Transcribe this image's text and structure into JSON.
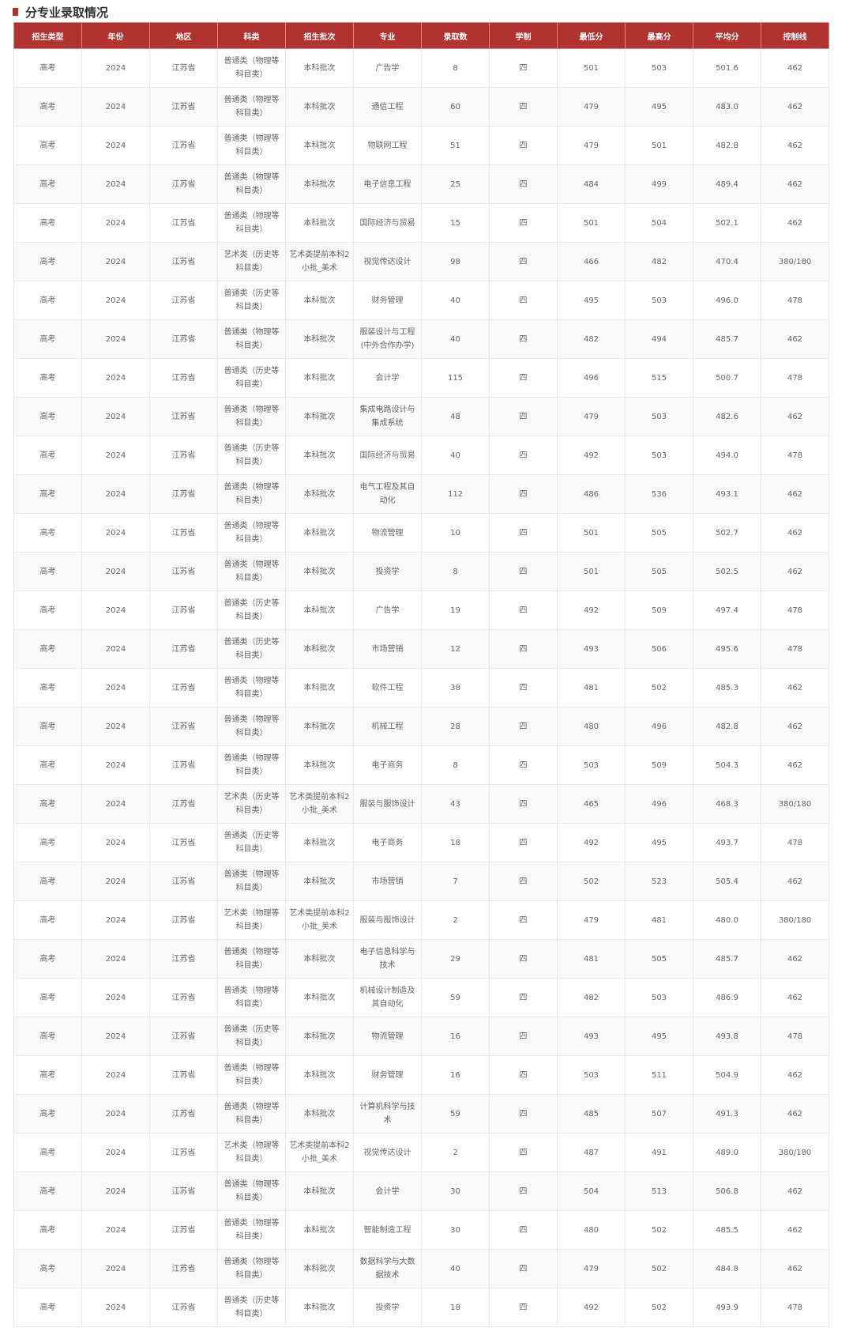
{
  "section_title": "分专业录取情况",
  "accent_color": "#b0332f",
  "headers": [
    "招生类型",
    "年份",
    "地区",
    "科类",
    "招生批次",
    "专业",
    "录取数",
    "学制",
    "最低分",
    "最高分",
    "平均分",
    "控制线"
  ],
  "rows": [
    [
      "高考",
      "2024",
      "江苏省",
      "普通类（物理等科目类）",
      "本科批次",
      "广告学",
      "8",
      "四",
      "501",
      "503",
      "501.6",
      "462"
    ],
    [
      "高考",
      "2024",
      "江苏省",
      "普通类（物理等科目类）",
      "本科批次",
      "通信工程",
      "60",
      "四",
      "479",
      "495",
      "483.0",
      "462"
    ],
    [
      "高考",
      "2024",
      "江苏省",
      "普通类（物理等科目类）",
      "本科批次",
      "物联网工程",
      "51",
      "四",
      "479",
      "501",
      "482.8",
      "462"
    ],
    [
      "高考",
      "2024",
      "江苏省",
      "普通类（物理等科目类）",
      "本科批次",
      "电子信息工程",
      "25",
      "四",
      "484",
      "499",
      "489.4",
      "462"
    ],
    [
      "高考",
      "2024",
      "江苏省",
      "普通类（物理等科目类）",
      "本科批次",
      "国际经济与贸易",
      "15",
      "四",
      "501",
      "504",
      "502.1",
      "462"
    ],
    [
      "高考",
      "2024",
      "江苏省",
      "艺术类（历史等科目类）",
      "艺术类提前本科2小批_美术",
      "视觉传达设计",
      "98",
      "四",
      "466",
      "482",
      "470.4",
      "380/180"
    ],
    [
      "高考",
      "2024",
      "江苏省",
      "普通类（历史等科目类）",
      "本科批次",
      "财务管理",
      "40",
      "四",
      "495",
      "503",
      "496.0",
      "478"
    ],
    [
      "高考",
      "2024",
      "江苏省",
      "普通类（物理等科目类）",
      "本科批次",
      "服装设计与工程(中外合作办学)",
      "40",
      "四",
      "482",
      "494",
      "485.7",
      "462"
    ],
    [
      "高考",
      "2024",
      "江苏省",
      "普通类（历史等科目类）",
      "本科批次",
      "会计学",
      "115",
      "四",
      "496",
      "515",
      "500.7",
      "478"
    ],
    [
      "高考",
      "2024",
      "江苏省",
      "普通类（物理等科目类）",
      "本科批次",
      "集成电路设计与集成系统",
      "48",
      "四",
      "479",
      "503",
      "482.6",
      "462"
    ],
    [
      "高考",
      "2024",
      "江苏省",
      "普通类（历史等科目类）",
      "本科批次",
      "国际经济与贸易",
      "40",
      "四",
      "492",
      "503",
      "494.0",
      "478"
    ],
    [
      "高考",
      "2024",
      "江苏省",
      "普通类（物理等科目类）",
      "本科批次",
      "电气工程及其自动化",
      "112",
      "四",
      "486",
      "536",
      "493.1",
      "462"
    ],
    [
      "高考",
      "2024",
      "江苏省",
      "普通类（物理等科目类）",
      "本科批次",
      "物流管理",
      "10",
      "四",
      "501",
      "505",
      "502.7",
      "462"
    ],
    [
      "高考",
      "2024",
      "江苏省",
      "普通类（物理等科目类）",
      "本科批次",
      "投资学",
      "8",
      "四",
      "501",
      "505",
      "502.5",
      "462"
    ],
    [
      "高考",
      "2024",
      "江苏省",
      "普通类（历史等科目类）",
      "本科批次",
      "广告学",
      "19",
      "四",
      "492",
      "509",
      "497.4",
      "478"
    ],
    [
      "高考",
      "2024",
      "江苏省",
      "普通类（历史等科目类）",
      "本科批次",
      "市场营销",
      "12",
      "四",
      "493",
      "506",
      "495.6",
      "478"
    ],
    [
      "高考",
      "2024",
      "江苏省",
      "普通类（物理等科目类）",
      "本科批次",
      "软件工程",
      "38",
      "四",
      "481",
      "502",
      "485.3",
      "462"
    ],
    [
      "高考",
      "2024",
      "江苏省",
      "普通类（物理等科目类）",
      "本科批次",
      "机械工程",
      "28",
      "四",
      "480",
      "496",
      "482.8",
      "462"
    ],
    [
      "高考",
      "2024",
      "江苏省",
      "普通类（物理等科目类）",
      "本科批次",
      "电子商务",
      "8",
      "四",
      "503",
      "509",
      "504.3",
      "462"
    ],
    [
      "高考",
      "2024",
      "江苏省",
      "艺术类（历史等科目类）",
      "艺术类提前本科2小批_美术",
      "服装与服饰设计",
      "43",
      "四",
      "465",
      "496",
      "468.3",
      "380/180"
    ],
    [
      "高考",
      "2024",
      "江苏省",
      "普通类（历史等科目类）",
      "本科批次",
      "电子商务",
      "18",
      "四",
      "492",
      "495",
      "493.7",
      "478"
    ],
    [
      "高考",
      "2024",
      "江苏省",
      "普通类（物理等科目类）",
      "本科批次",
      "市场营销",
      "7",
      "四",
      "502",
      "523",
      "505.4",
      "462"
    ],
    [
      "高考",
      "2024",
      "江苏省",
      "艺术类（物理等科目类）",
      "艺术类提前本科2小批_美术",
      "服装与服饰设计",
      "2",
      "四",
      "479",
      "481",
      "480.0",
      "380/180"
    ],
    [
      "高考",
      "2024",
      "江苏省",
      "普通类（物理等科目类）",
      "本科批次",
      "电子信息科学与技术",
      "29",
      "四",
      "481",
      "505",
      "485.7",
      "462"
    ],
    [
      "高考",
      "2024",
      "江苏省",
      "普通类（物理等科目类）",
      "本科批次",
      "机械设计制造及其自动化",
      "59",
      "四",
      "482",
      "503",
      "486.9",
      "462"
    ],
    [
      "高考",
      "2024",
      "江苏省",
      "普通类（历史等科目类）",
      "本科批次",
      "物流管理",
      "16",
      "四",
      "493",
      "495",
      "493.8",
      "478"
    ],
    [
      "高考",
      "2024",
      "江苏省",
      "普通类（物理等科目类）",
      "本科批次",
      "财务管理",
      "16",
      "四",
      "503",
      "511",
      "504.9",
      "462"
    ],
    [
      "高考",
      "2024",
      "江苏省",
      "普通类（物理等科目类）",
      "本科批次",
      "计算机科学与技术",
      "59",
      "四",
      "485",
      "507",
      "491.3",
      "462"
    ],
    [
      "高考",
      "2024",
      "江苏省",
      "艺术类（物理等科目类）",
      "艺术类提前本科2小批_美术",
      "视觉传达设计",
      "2",
      "四",
      "487",
      "491",
      "489.0",
      "380/180"
    ],
    [
      "高考",
      "2024",
      "江苏省",
      "普通类（物理等科目类）",
      "本科批次",
      "会计学",
      "30",
      "四",
      "504",
      "513",
      "506.8",
      "462"
    ],
    [
      "高考",
      "2024",
      "江苏省",
      "普通类（物理等科目类）",
      "本科批次",
      "智能制造工程",
      "30",
      "四",
      "480",
      "502",
      "485.5",
      "462"
    ],
    [
      "高考",
      "2024",
      "江苏省",
      "普通类（物理等科目类）",
      "本科批次",
      "数据科学与大数据技术",
      "40",
      "四",
      "479",
      "502",
      "484.8",
      "462"
    ],
    [
      "高考",
      "2024",
      "江苏省",
      "普通类（历史等科目类）",
      "本科批次",
      "投资学",
      "18",
      "四",
      "492",
      "502",
      "493.9",
      "478"
    ]
  ]
}
